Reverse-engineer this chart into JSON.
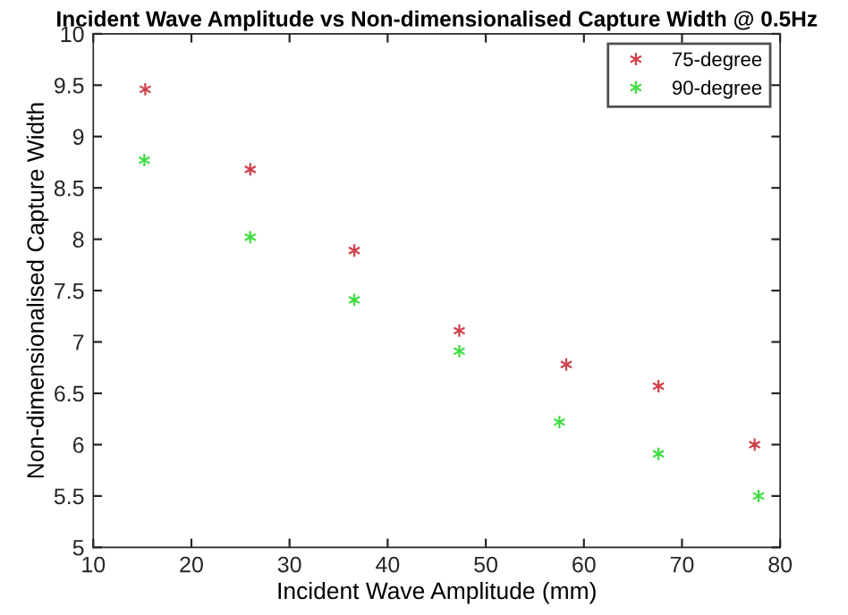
{
  "chart_data": {
    "type": "scatter",
    "title": "Incident Wave Amplitude vs Non-dimensionalised Capture Width @ 0.5Hz",
    "xlabel": "Incident Wave Amplitude (mm)",
    "ylabel": "Non-dimensionalised Capture Width",
    "xlim": [
      10,
      80
    ],
    "xticks": [
      10,
      20,
      30,
      40,
      50,
      60,
      70,
      80
    ],
    "ylim": [
      5,
      10
    ],
    "yticks": [
      5,
      5.5,
      6,
      6.5,
      7,
      7.5,
      8,
      8.5,
      9,
      9.5,
      10
    ],
    "grid": false,
    "legend": "top right",
    "marker": "cross",
    "series": [
      {
        "name": "75-degree",
        "color": "#d0404a",
        "x": [
          15.3,
          26.0,
          36.6,
          47.3,
          58.2,
          67.6,
          77.4
        ],
        "values": [
          9.46,
          8.68,
          7.89,
          7.11,
          6.78,
          6.57,
          6.0
        ]
      },
      {
        "name": "90-degree",
        "color": "#40dd40",
        "x": [
          15.2,
          26.0,
          36.6,
          47.3,
          57.5,
          67.6,
          77.8
        ],
        "values": [
          8.77,
          8.02,
          7.41,
          6.91,
          6.22,
          5.91,
          5.5
        ]
      }
    ]
  }
}
